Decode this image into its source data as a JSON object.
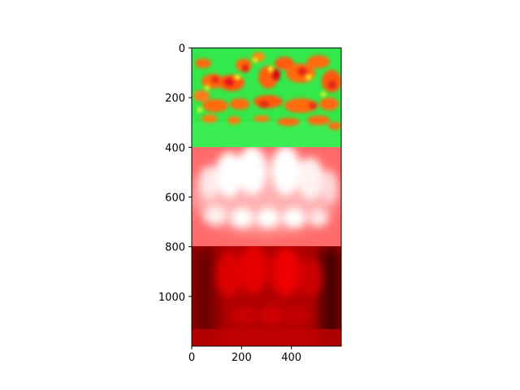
{
  "chart_data": {
    "type": "heatmap",
    "title": "",
    "xlabel": "",
    "ylabel": "",
    "xlim": [
      0,
      600
    ],
    "ylim": [
      1200,
      0
    ],
    "x_ticks": [
      {
        "value": 0,
        "label": "0"
      },
      {
        "value": 200,
        "label": "200"
      },
      {
        "value": 400,
        "label": "400"
      }
    ],
    "y_ticks": [
      {
        "value": 0,
        "label": "0"
      },
      {
        "value": 200,
        "label": "200"
      },
      {
        "value": 400,
        "label": "400"
      },
      {
        "value": 600,
        "label": "600"
      },
      {
        "value": 800,
        "label": "800"
      },
      {
        "value": 1000,
        "label": "1000"
      }
    ],
    "panels": [
      {
        "name": "heatmap-panel",
        "y_range": [
          0,
          400
        ],
        "background_color": "#33e84a"
      },
      {
        "name": "light-red-panel",
        "y_range": [
          400,
          800
        ],
        "background_color": "#ff6b6b"
      },
      {
        "name": "dark-red-panel",
        "y_range": [
          800,
          1200
        ],
        "background_color": "#b00000"
      }
    ],
    "grid": false
  }
}
